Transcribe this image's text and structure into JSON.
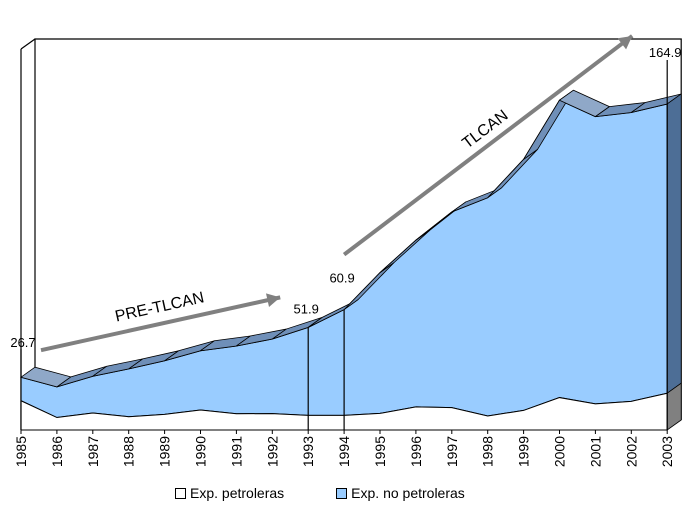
{
  "chart_data": {
    "type": "area",
    "stacked": true,
    "x": [
      "1985",
      "1986",
      "1987",
      "1988",
      "1989",
      "1990",
      "1991",
      "1992",
      "1993",
      "1994",
      "1995",
      "1996",
      "1997",
      "1998",
      "1999",
      "2000",
      "2001",
      "2002",
      "2003"
    ],
    "series": [
      {
        "name": "Exp. petroleras",
        "color": "#ffffff",
        "values": [
          14.8,
          6.3,
          8.6,
          6.7,
          7.9,
          10.1,
          8.2,
          8.3,
          7.4,
          7.4,
          8.4,
          11.7,
          11.3,
          7.1,
          9.9,
          16.4,
          13.2,
          14.5,
          18.6
        ]
      },
      {
        "name": "Exp. no petroleras",
        "color": "#99ccff",
        "values": [
          11.9,
          15.5,
          18.6,
          24.2,
          27.1,
          30.0,
          34.3,
          37.7,
          44.5,
          53.5,
          71.2,
          84.3,
          99.0,
          110.4,
          127.0,
          150.4,
          145.3,
          146.1,
          146.3
        ]
      }
    ],
    "ylim": [
      0,
      175
    ],
    "annotations": [
      {
        "x": "1985",
        "label": "26.7"
      },
      {
        "x": "1993",
        "label": "51.9"
      },
      {
        "x": "1994",
        "label": "60.9"
      },
      {
        "x": "2003",
        "label": "164.9"
      }
    ],
    "phases": [
      {
        "label": "PRE-TLCAN",
        "from": "1985",
        "to": "1993"
      },
      {
        "label": "TLCAN",
        "from": "1994",
        "to": "2003"
      }
    ],
    "legend": "bottom",
    "grid": false,
    "style": "3d"
  }
}
